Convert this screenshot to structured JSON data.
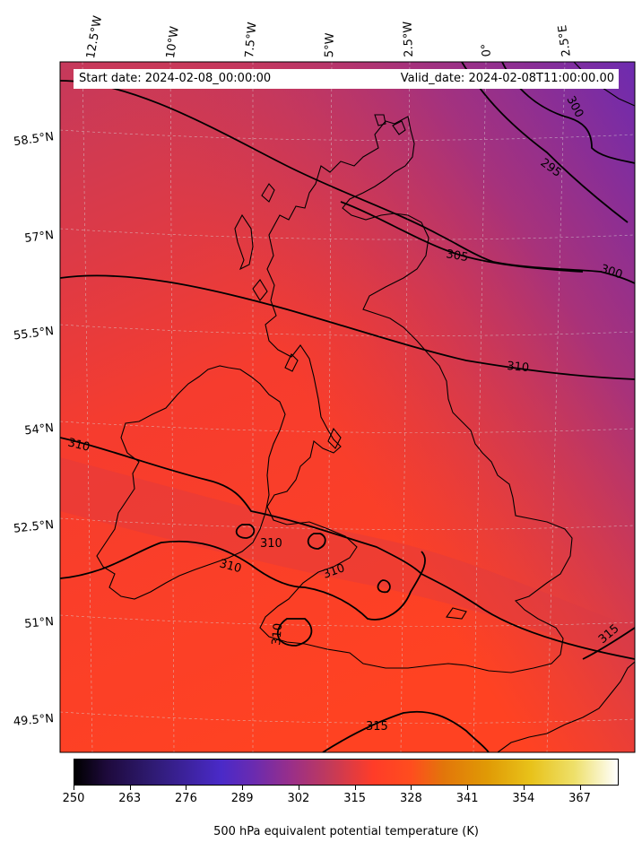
{
  "map": {
    "start_date_text": "Start date: 2024-02-08_00:00:00",
    "valid_date_text": "Valid_date: 2024-02-08T11:00:00.00",
    "longitude_labels": [
      "12.5°W",
      "10°W",
      "7.5°W",
      "5°W",
      "2.5°W",
      "0°",
      "2.5°E"
    ],
    "latitude_labels": [
      "58.5°N",
      "57°N",
      "55.5°N",
      "54°N",
      "52.5°N",
      "51°N",
      "49.5°N"
    ],
    "contour_labels": [
      "300",
      "295",
      "305",
      "300",
      "310",
      "310",
      "310",
      "310",
      "310",
      "310",
      "315",
      "315"
    ],
    "colormap": "CMRmap",
    "colors": {
      "field_warm": "#ff3c28",
      "field_cool": "#c23a5a",
      "field_cold": "#6a2bb0",
      "coastline": "#000000"
    }
  },
  "colorbar": {
    "title": "500 hPa equivalent potential temperature (K)",
    "ticks": [
      "250",
      "263",
      "276",
      "289",
      "302",
      "315",
      "328",
      "341",
      "354",
      "367"
    ],
    "range": [
      250,
      376
    ]
  }
}
